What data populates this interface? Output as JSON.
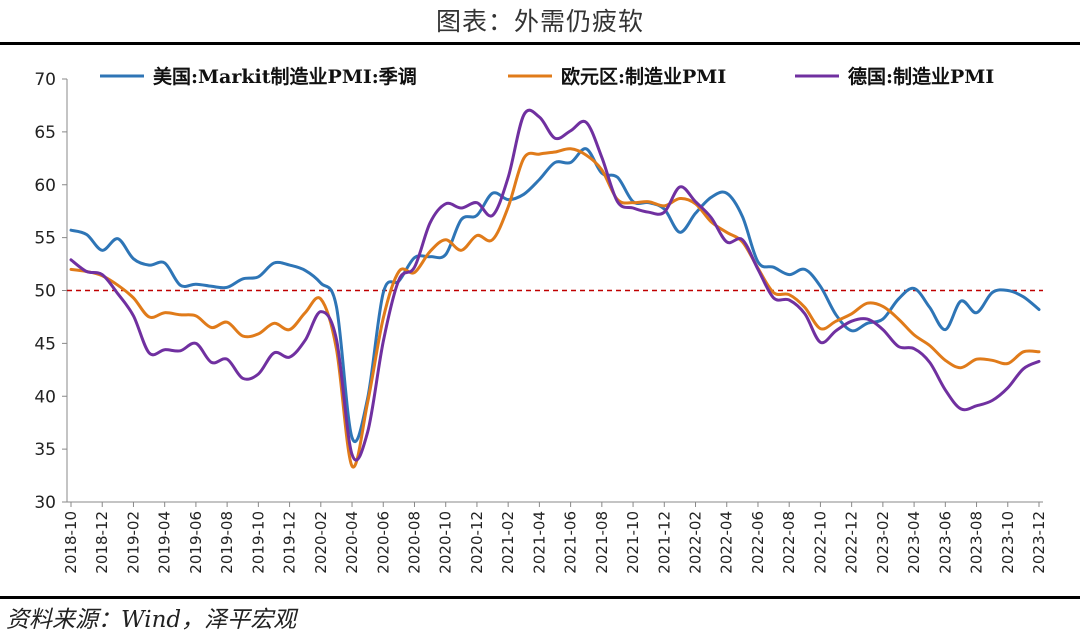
{
  "title": "图表：外需仍疲软",
  "source": "资料来源：Wind，泽平宏观",
  "colors": {
    "us": "#2E75B6",
    "ez": "#E07B1A",
    "de": "#7030A0",
    "ref": "#C00000"
  },
  "chart_data": {
    "type": "line",
    "ylim": [
      30,
      70
    ],
    "yticks": [
      30,
      35,
      40,
      45,
      50,
      55,
      60,
      65,
      70
    ],
    "reference_line": 50,
    "grid": false,
    "legend_position": "top",
    "x": [
      "2018-10",
      "2018-11",
      "2018-12",
      "2019-01",
      "2019-02",
      "2019-03",
      "2019-04",
      "2019-05",
      "2019-06",
      "2019-07",
      "2019-08",
      "2019-09",
      "2019-10",
      "2019-11",
      "2019-12",
      "2020-01",
      "2020-02",
      "2020-03",
      "2020-04",
      "2020-05",
      "2020-06",
      "2020-07",
      "2020-08",
      "2020-09",
      "2020-10",
      "2020-11",
      "2020-12",
      "2021-01",
      "2021-02",
      "2021-03",
      "2021-04",
      "2021-05",
      "2021-06",
      "2021-07",
      "2021-08",
      "2021-09",
      "2021-10",
      "2021-11",
      "2021-12",
      "2022-01",
      "2022-02",
      "2022-03",
      "2022-04",
      "2022-05",
      "2022-06",
      "2022-07",
      "2022-08",
      "2022-09",
      "2022-10",
      "2022-11",
      "2022-12",
      "2023-01",
      "2023-02",
      "2023-03",
      "2023-04",
      "2023-05",
      "2023-06",
      "2023-07",
      "2023-08",
      "2023-09",
      "2023-10",
      "2023-11",
      "2023-12"
    ],
    "xticks": [
      "2018-10",
      "2018-12",
      "2019-02",
      "2019-04",
      "2019-06",
      "2019-08",
      "2019-10",
      "2019-12",
      "2020-02",
      "2020-04",
      "2020-06",
      "2020-08",
      "2020-10",
      "2020-12",
      "2021-02",
      "2021-04",
      "2021-06",
      "2021-08",
      "2021-10",
      "2021-12",
      "2022-02",
      "2022-04",
      "2022-06",
      "2022-08",
      "2022-10",
      "2022-12",
      "2023-02",
      "2023-04",
      "2023-06",
      "2023-08",
      "2023-10",
      "2023-12"
    ],
    "series": [
      {
        "name": "美国:Markit制造业PMI:季调",
        "color_key": "us",
        "values": [
          55.7,
          55.3,
          53.8,
          54.9,
          53.0,
          52.4,
          52.6,
          50.5,
          50.6,
          50.4,
          50.3,
          51.1,
          51.3,
          52.6,
          52.4,
          51.9,
          50.7,
          48.5,
          36.1,
          39.8,
          49.8,
          50.9,
          53.1,
          53.2,
          53.4,
          56.7,
          57.1,
          59.2,
          58.6,
          59.1,
          60.5,
          62.1,
          62.1,
          63.4,
          61.1,
          60.7,
          58.4,
          58.3,
          57.7,
          55.5,
          57.3,
          58.8,
          59.2,
          57.0,
          52.7,
          52.2,
          51.5,
          52.0,
          50.4,
          47.7,
          46.2,
          46.9,
          47.3,
          49.2,
          50.2,
          48.4,
          46.3,
          49.0,
          47.9,
          49.8,
          50.0,
          49.4,
          48.2
        ]
      },
      {
        "name": "欧元区:制造业PMI",
        "color_key": "ez",
        "values": [
          52.0,
          51.8,
          51.4,
          50.5,
          49.3,
          47.5,
          47.9,
          47.7,
          47.6,
          46.5,
          47.0,
          45.7,
          45.9,
          46.9,
          46.3,
          47.9,
          49.2,
          44.5,
          33.4,
          39.4,
          47.4,
          51.8,
          51.7,
          53.7,
          54.8,
          53.8,
          55.2,
          54.8,
          57.9,
          62.5,
          62.9,
          63.1,
          63.4,
          62.8,
          61.4,
          58.6,
          58.3,
          58.4,
          58.0,
          58.7,
          58.2,
          56.5,
          55.5,
          54.6,
          52.1,
          49.8,
          49.6,
          48.4,
          46.4,
          47.1,
          47.8,
          48.8,
          48.5,
          47.3,
          45.8,
          44.8,
          43.4,
          42.7,
          43.5,
          43.4,
          43.1,
          44.2,
          44.2
        ]
      },
      {
        "name": "德国:制造业PMI",
        "color_key": "de",
        "values": [
          52.9,
          51.8,
          51.5,
          49.7,
          47.6,
          44.1,
          44.4,
          44.3,
          45.0,
          43.2,
          43.5,
          41.7,
          42.1,
          44.1,
          43.7,
          45.3,
          48.0,
          45.4,
          34.5,
          36.6,
          45.2,
          51.0,
          52.2,
          56.4,
          58.2,
          57.8,
          58.3,
          57.1,
          60.7,
          66.6,
          66.4,
          64.4,
          65.1,
          65.9,
          62.6,
          58.4,
          57.8,
          57.4,
          57.4,
          59.8,
          58.4,
          56.9,
          54.6,
          54.8,
          52.0,
          49.3,
          49.1,
          47.8,
          45.1,
          46.2,
          47.1,
          47.3,
          46.3,
          44.7,
          44.5,
          43.2,
          40.6,
          38.8,
          39.1,
          39.6,
          40.8,
          42.6,
          43.3
        ]
      }
    ]
  }
}
